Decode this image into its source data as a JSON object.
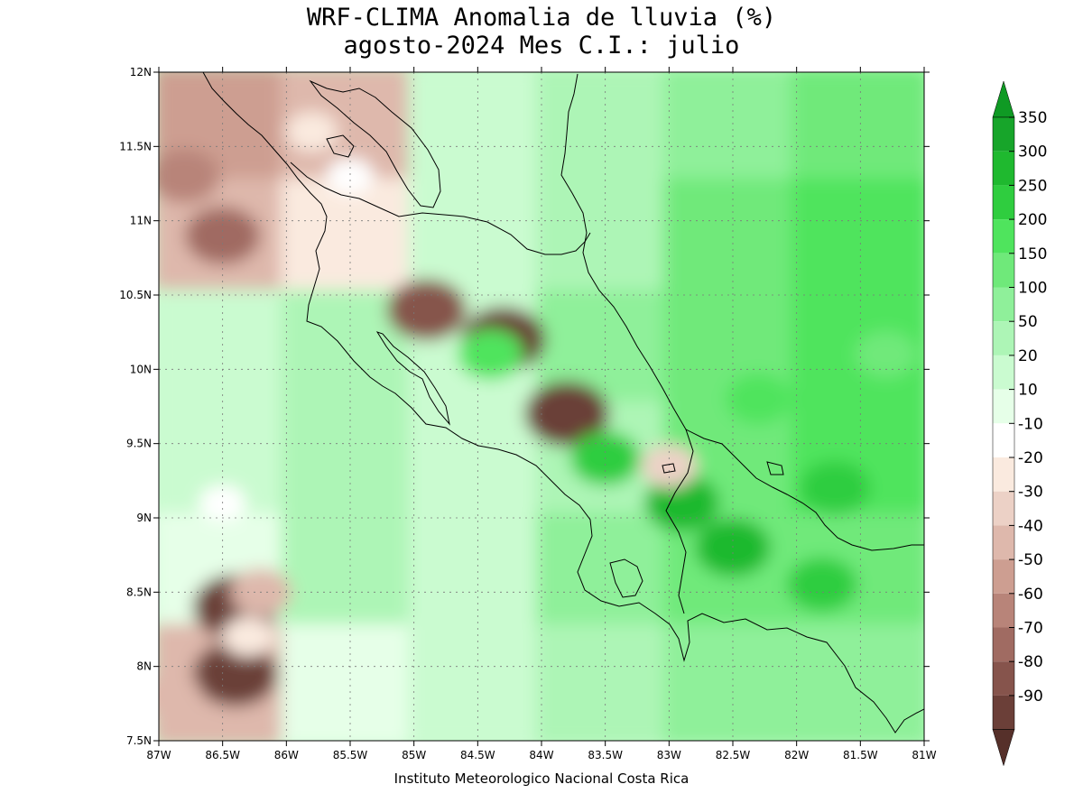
{
  "title": {
    "line1": "WRF-CLIMA Anomalia de lluvia (%)",
    "line2": "agosto-2024 Mes C.I.: julio"
  },
  "credit": "Instituto Meteorologico Nacional Costa Rica",
  "map": {
    "lon_range": [
      -87,
      -81
    ],
    "lat_range": [
      7.5,
      12
    ],
    "lon_ticks": [
      {
        "value": -87,
        "label": "87W"
      },
      {
        "value": -86.5,
        "label": "86.5W"
      },
      {
        "value": -86,
        "label": "86W"
      },
      {
        "value": -85.5,
        "label": "85.5W"
      },
      {
        "value": -85,
        "label": "85W"
      },
      {
        "value": -84.5,
        "label": "84.5W"
      },
      {
        "value": -84,
        "label": "84W"
      },
      {
        "value": -83.5,
        "label": "83.5W"
      },
      {
        "value": -83,
        "label": "83W"
      },
      {
        "value": -82.5,
        "label": "82.5W"
      },
      {
        "value": -82,
        "label": "82W"
      },
      {
        "value": -81.5,
        "label": "81.5W"
      },
      {
        "value": -81,
        "label": "81W"
      }
    ],
    "lat_ticks": [
      {
        "value": 7.5,
        "label": "7.5N"
      },
      {
        "value": 8,
        "label": "8N"
      },
      {
        "value": 8.5,
        "label": "8.5N"
      },
      {
        "value": 9,
        "label": "9N"
      },
      {
        "value": 9.5,
        "label": "9.5N"
      },
      {
        "value": 10,
        "label": "10N"
      },
      {
        "value": 10.5,
        "label": "10.5N"
      },
      {
        "value": 11,
        "label": "11N"
      },
      {
        "value": 11.5,
        "label": "11.5N"
      },
      {
        "value": 12,
        "label": "12N"
      }
    ],
    "grid": true
  },
  "colorbar": {
    "bins": [
      {
        "label": "350",
        "color": "#17a52a"
      },
      {
        "label": "300",
        "color": "#1fb92f"
      },
      {
        "label": "250",
        "color": "#2fcd3f"
      },
      {
        "label": "200",
        "color": "#4fe45d"
      },
      {
        "label": "150",
        "color": "#6fe97a"
      },
      {
        "label": "100",
        "color": "#8ff09a"
      },
      {
        "label": "50",
        "color": "#adf5b6"
      },
      {
        "label": "20",
        "color": "#cafbd0"
      },
      {
        "label": "10",
        "color": "#e6ffe8"
      },
      {
        "label": "-10",
        "color": "#ffffff"
      },
      {
        "label": "-20",
        "color": "#faeadf"
      },
      {
        "label": "-30",
        "color": "#ecd1c6"
      },
      {
        "label": "-40",
        "color": "#deb8ac"
      },
      {
        "label": "-50",
        "color": "#cd9e91"
      },
      {
        "label": "-60",
        "color": "#b88479"
      },
      {
        "label": "-70",
        "color": "#a06b62"
      },
      {
        "label": "-80",
        "color": "#86544c"
      },
      {
        "label": "-90",
        "color": "#6b3f38"
      }
    ],
    "cap_top_color": "#0f9a24",
    "cap_bottom_color": "#56302a"
  },
  "field": {
    "base": 1,
    "lon_edges": [
      -87,
      -86,
      -85,
      -84,
      -83,
      -82,
      -81
    ],
    "lat_edges": [
      12,
      11.25,
      10.5,
      9.75,
      9,
      8.25,
      7.5
    ],
    "grid_levels": [
      [
        -5,
        -4,
        1,
        2,
        3,
        4
      ],
      [
        -4,
        -2,
        1,
        2,
        4,
        5
      ],
      [
        1,
        2,
        1,
        3,
        4,
        5
      ],
      [
        1,
        2,
        1,
        2,
        4,
        5
      ],
      [
        0,
        2,
        1,
        3,
        4,
        4
      ],
      [
        -4,
        0,
        1,
        2,
        3,
        3
      ]
    ],
    "patches": [
      {
        "lon": -86.8,
        "lat": 11.3,
        "level": -6
      },
      {
        "lon": -86.5,
        "lat": 10.9,
        "level": -7
      },
      {
        "lon": -85.8,
        "lat": 11.6,
        "level": -2
      },
      {
        "lon": -85.5,
        "lat": 11.3,
        "level": -1
      },
      {
        "lon": -84.9,
        "lat": 10.4,
        "level": -8
      },
      {
        "lon": -84.3,
        "lat": 10.2,
        "level": -9
      },
      {
        "lon": -83.8,
        "lat": 9.7,
        "level": -9
      },
      {
        "lon": -84.4,
        "lat": 10.1,
        "level": 5
      },
      {
        "lon": -83.5,
        "lat": 9.4,
        "level": 6
      },
      {
        "lon": -82.9,
        "lat": 9.1,
        "level": 7
      },
      {
        "lon": -82.5,
        "lat": 8.8,
        "level": 7
      },
      {
        "lon": -81.8,
        "lat": 8.55,
        "level": 6
      },
      {
        "lon": -81.7,
        "lat": 9.2,
        "level": 6
      },
      {
        "lon": -82.3,
        "lat": 9.8,
        "level": 5
      },
      {
        "lon": -81.3,
        "lat": 10.1,
        "level": 4
      },
      {
        "lon": -86.4,
        "lat": 8.4,
        "level": -9
      },
      {
        "lon": -86.4,
        "lat": 7.95,
        "level": -9
      },
      {
        "lon": -86.2,
        "lat": 8.5,
        "level": -4
      },
      {
        "lon": -86.3,
        "lat": 8.2,
        "level": -2
      },
      {
        "lon": -86.9,
        "lat": 7.8,
        "level": -4
      },
      {
        "lon": -86.5,
        "lat": 9.1,
        "level": -1
      },
      {
        "lon": -83,
        "lat": 9.35,
        "level": -3
      }
    ]
  }
}
